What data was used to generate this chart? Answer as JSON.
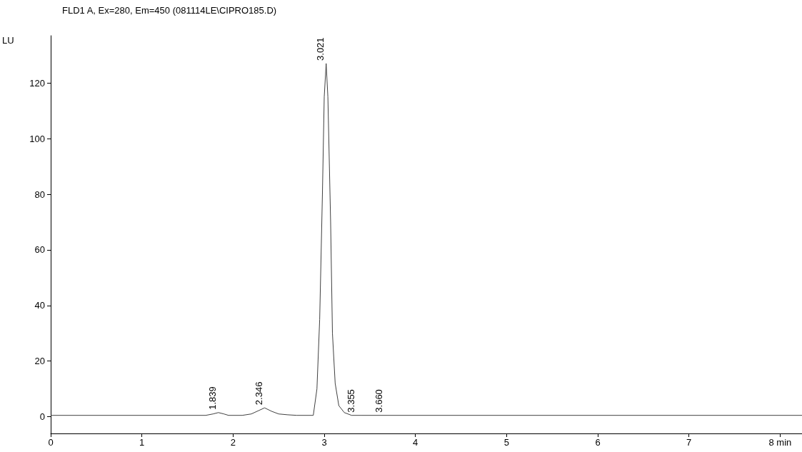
{
  "chart_data": {
    "type": "line",
    "title": "FLD1 A, Ex=280, Em=450 (081114LE\\CIPRO185.D)",
    "ylabel": "LU",
    "color": "#404040",
    "x": [
      0,
      1.7,
      1.78,
      1.839,
      1.9,
      1.95,
      2.1,
      2.2,
      2.28,
      2.346,
      2.42,
      2.5,
      2.6,
      2.7,
      2.88,
      2.92,
      2.95,
      2.98,
      3.0,
      3.021,
      3.04,
      3.07,
      3.09,
      3.12,
      3.16,
      3.22,
      3.3,
      3.4,
      8.24
    ],
    "values": [
      0.5,
      0.5,
      1.0,
      1.5,
      1.0,
      0.5,
      0.5,
      1.0,
      2.2,
      3.2,
      2.0,
      1.0,
      0.7,
      0.5,
      0.5,
      10,
      35,
      80,
      115,
      127,
      115,
      70,
      30,
      12,
      4,
      1.5,
      0.5,
      0.5,
      0.5
    ],
    "xlim": [
      0,
      8.24
    ],
    "xticks": [
      0,
      1,
      2,
      3,
      4,
      5,
      6,
      7,
      {
        "value": 8,
        "label": "8 min"
      }
    ],
    "ylim": [
      -6,
      137
    ],
    "yticks": [
      0,
      20,
      40,
      60,
      80,
      100,
      120
    ],
    "grid": false,
    "marker": "none",
    "line_style": "solid",
    "annotations": [
      {
        "text": "1.839",
        "x": 1.839,
        "y": 1.5
      },
      {
        "text": "2.346",
        "x": 2.346,
        "y": 3.2
      },
      {
        "text": "3.021",
        "x": 3.021,
        "y": 127
      },
      {
        "text": "3.355",
        "x": 3.355,
        "y": 0.5
      },
      {
        "text": "3.660",
        "x": 3.66,
        "y": 0.5
      }
    ]
  }
}
